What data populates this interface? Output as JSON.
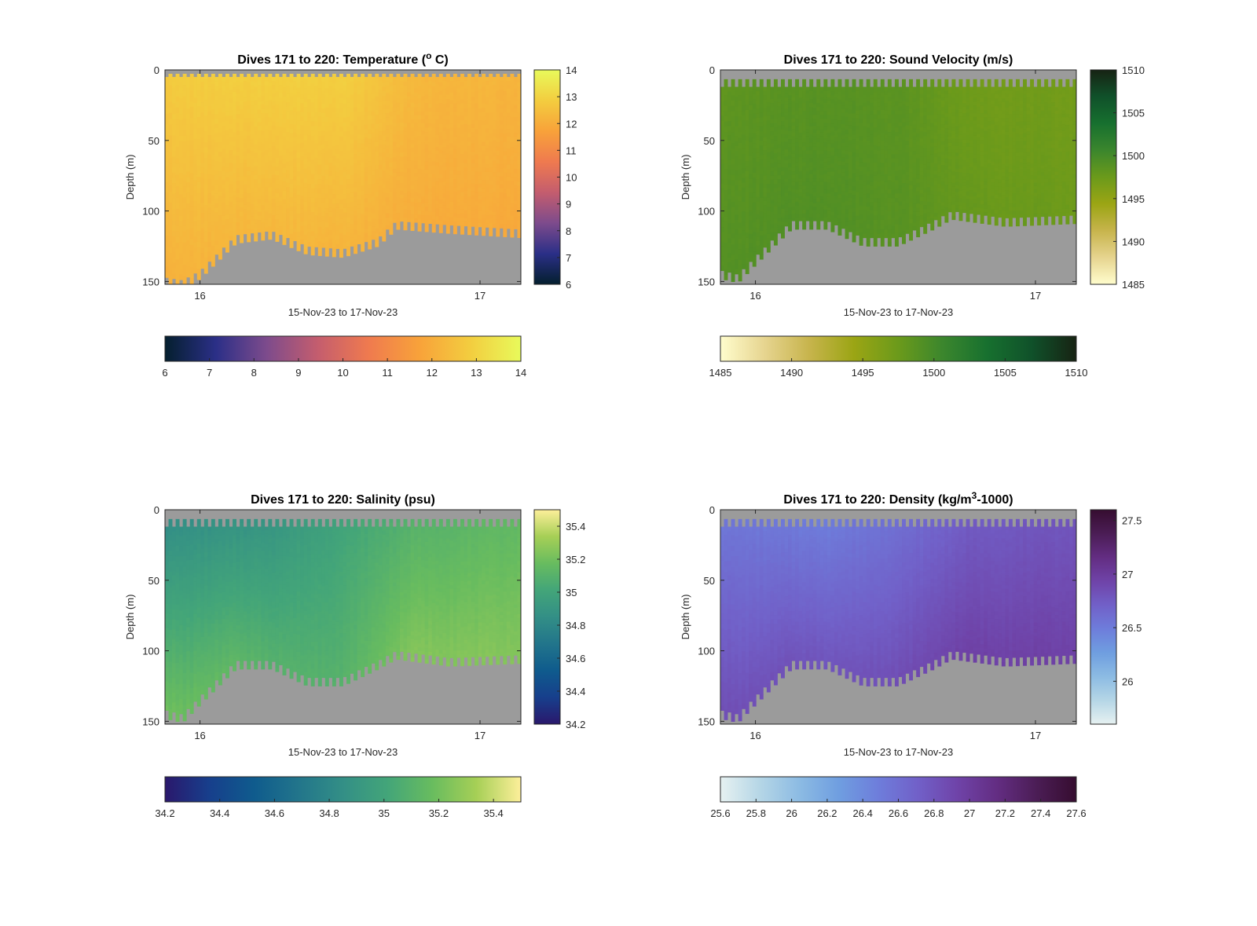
{
  "chart_data": [
    {
      "type": "heatmap",
      "title": "Dives 171 to 220: Temperature (",
      "title_sup": "o",
      "title_after": " C)",
      "xlabel": "15-Nov-23 to 17-Nov-23",
      "ylabel": "Depth (m)",
      "x_range": [
        "15-Nov-23 21:00",
        "17-Nov-23 03:30"
      ],
      "xticks": [
        {
          "label": "16",
          "value": "16-Nov-23 00:00"
        },
        {
          "label": "17",
          "value": "17-Nov-23 00:00"
        }
      ],
      "ylim": [
        0,
        152
      ],
      "yticks": [
        0,
        50,
        100,
        150
      ],
      "grid": false,
      "colormap": "thermal",
      "colormap_stops": [
        "#041f2e",
        "#2b2f87",
        "#7d4b8c",
        "#c45d6e",
        "#ef7a4f",
        "#f8a23a",
        "#f3cd3f",
        "#e8fa5b"
      ],
      "clim": [
        6,
        14
      ],
      "colorbar_ticks": [
        6,
        7,
        8,
        9,
        10,
        11,
        12,
        13,
        14
      ],
      "horizontal_colorbar_ticks": [
        6,
        7,
        8,
        9,
        10,
        11,
        12,
        13,
        14
      ],
      "no_data_color": "#9b9b9b",
      "surface_gap_m": 5,
      "value_profile": [
        {
          "x": 0.0,
          "surface": 12.8,
          "bottom": 12.1
        },
        {
          "x": 0.3,
          "surface": 12.9,
          "bottom": 12.3
        },
        {
          "x": 0.5,
          "surface": 12.9,
          "bottom": 12.2
        },
        {
          "x": 0.7,
          "surface": 12.3,
          "bottom": 12.0
        },
        {
          "x": 1.0,
          "surface": 12.2,
          "bottom": 11.9
        }
      ],
      "bottom_depth_profile": [
        {
          "x": 0.0,
          "depth": 150
        },
        {
          "x": 0.05,
          "depth": 152
        },
        {
          "x": 0.1,
          "depth": 145
        },
        {
          "x": 0.2,
          "depth": 120
        },
        {
          "x": 0.3,
          "depth": 117
        },
        {
          "x": 0.4,
          "depth": 128
        },
        {
          "x": 0.5,
          "depth": 130
        },
        {
          "x": 0.6,
          "depth": 122
        },
        {
          "x": 0.65,
          "depth": 110
        },
        {
          "x": 0.8,
          "depth": 113
        },
        {
          "x": 1.0,
          "depth": 116
        }
      ]
    },
    {
      "type": "heatmap",
      "title": "Dives 171 to 220: Sound Velocity (m/s)",
      "xlabel": "15-Nov-23 to 17-Nov-23",
      "ylabel": "Depth (m)",
      "x_range": [
        "15-Nov-23 21:00",
        "17-Nov-23 03:30"
      ],
      "xticks": [
        {
          "label": "16",
          "value": "16-Nov-23 00:00"
        },
        {
          "label": "17",
          "value": "17-Nov-23 00:00"
        }
      ],
      "ylim": [
        0,
        152
      ],
      "yticks": [
        0,
        50,
        100,
        150
      ],
      "grid": false,
      "colormap": "speed",
      "colormap_stops": [
        "#fffdcd",
        "#e6d48f",
        "#c7b44c",
        "#9ba514",
        "#6b9a1b",
        "#3b862d",
        "#17702f",
        "#10512a",
        "#172313"
      ],
      "clim": [
        1485,
        1510
      ],
      "colorbar_ticks": [
        1485,
        1490,
        1495,
        1500,
        1505,
        1510
      ],
      "horizontal_colorbar_ticks": [
        1485,
        1490,
        1495,
        1500,
        1505,
        1510
      ],
      "no_data_color": "#9b9b9b",
      "surface_gap_m": 12,
      "value_profile": [
        {
          "x": 0.0,
          "surface": 1498.3,
          "bottom": 1499.0
        },
        {
          "x": 0.3,
          "surface": 1498.8,
          "bottom": 1499.2
        },
        {
          "x": 0.5,
          "surface": 1498.6,
          "bottom": 1498.8
        },
        {
          "x": 0.7,
          "surface": 1497.2,
          "bottom": 1497.8
        },
        {
          "x": 1.0,
          "surface": 1497.0,
          "bottom": 1497.4
        }
      ],
      "bottom_depth_profile": [
        {
          "x": 0.0,
          "depth": 145
        },
        {
          "x": 0.05,
          "depth": 148
        },
        {
          "x": 0.1,
          "depth": 135
        },
        {
          "x": 0.2,
          "depth": 110
        },
        {
          "x": 0.3,
          "depth": 110
        },
        {
          "x": 0.4,
          "depth": 122
        },
        {
          "x": 0.5,
          "depth": 122
        },
        {
          "x": 0.6,
          "depth": 110
        },
        {
          "x": 0.65,
          "depth": 103
        },
        {
          "x": 0.8,
          "depth": 108
        },
        {
          "x": 1.0,
          "depth": 106
        }
      ]
    },
    {
      "type": "heatmap",
      "title": "Dives 171 to 220: Salinity (psu)",
      "xlabel": "15-Nov-23 to 17-Nov-23",
      "ylabel": "Depth (m)",
      "x_range": [
        "15-Nov-23 21:00",
        "17-Nov-23 03:30"
      ],
      "xticks": [
        {
          "label": "16",
          "value": "16-Nov-23 00:00"
        },
        {
          "label": "17",
          "value": "17-Nov-23 00:00"
        }
      ],
      "ylim": [
        0,
        152
      ],
      "yticks": [
        0,
        50,
        100,
        150
      ],
      "grid": false,
      "colormap": "haline",
      "colormap_stops": [
        "#2a186c",
        "#173f8c",
        "#0f5b8d",
        "#22758b",
        "#338f86",
        "#43a579",
        "#68bc5f",
        "#a6cf56",
        "#fdef9a"
      ],
      "clim": [
        34.2,
        35.5
      ],
      "colorbar_ticks": [
        34.2,
        34.4,
        34.6,
        34.8,
        35,
        35.2,
        35.4
      ],
      "horizontal_colorbar_ticks": [
        34.2,
        34.4,
        34.6,
        34.8,
        35,
        35.2,
        35.4
      ],
      "no_data_color": "#9b9b9b",
      "surface_gap_m": 12,
      "value_profile": [
        {
          "x": 0.0,
          "surface": 34.85,
          "bottom": 35.2
        },
        {
          "x": 0.3,
          "surface": 34.9,
          "bottom": 35.1
        },
        {
          "x": 0.5,
          "surface": 35.0,
          "bottom": 35.1
        },
        {
          "x": 0.7,
          "surface": 35.1,
          "bottom": 35.25
        },
        {
          "x": 1.0,
          "surface": 35.15,
          "bottom": 35.25
        }
      ],
      "bottom_depth_profile": [
        {
          "x": 0.0,
          "depth": 145
        },
        {
          "x": 0.05,
          "depth": 148
        },
        {
          "x": 0.1,
          "depth": 135
        },
        {
          "x": 0.2,
          "depth": 110
        },
        {
          "x": 0.3,
          "depth": 110
        },
        {
          "x": 0.4,
          "depth": 122
        },
        {
          "x": 0.5,
          "depth": 122
        },
        {
          "x": 0.6,
          "depth": 110
        },
        {
          "x": 0.65,
          "depth": 103
        },
        {
          "x": 0.8,
          "depth": 108
        },
        {
          "x": 1.0,
          "depth": 106
        }
      ]
    },
    {
      "type": "heatmap",
      "title": "Dives 171 to 220: Density (kg/m",
      "title_sup": "3",
      "title_after": "-1000)",
      "xlabel": "15-Nov-23 to 17-Nov-23",
      "ylabel": "Depth (m)",
      "x_range": [
        "15-Nov-23 21:00",
        "17-Nov-23 03:30"
      ],
      "xticks": [
        {
          "label": "16",
          "value": "16-Nov-23 00:00"
        },
        {
          "label": "17",
          "value": "17-Nov-23 00:00"
        }
      ],
      "ylim": [
        0,
        152
      ],
      "yticks": [
        0,
        50,
        100,
        150
      ],
      "grid": false,
      "colormap": "dense",
      "colormap_stops": [
        "#e6f1f1",
        "#b5d6e6",
        "#8cbbe3",
        "#6f9ee0",
        "#6e7ddb",
        "#7160c8",
        "#6f43a8",
        "#632d82",
        "#4b1d55",
        "#360d30"
      ],
      "clim": [
        25.6,
        27.6
      ],
      "colorbar_ticks": [
        26,
        26.5,
        27,
        27.5
      ],
      "horizontal_colorbar_ticks": [
        25.6,
        25.8,
        26,
        26.2,
        26.4,
        26.6,
        26.8,
        27,
        27.2,
        27.4,
        27.6
      ],
      "no_data_color": "#9b9b9b",
      "surface_gap_m": 12,
      "value_profile": [
        {
          "x": 0.0,
          "surface": 26.55,
          "bottom": 26.85
        },
        {
          "x": 0.3,
          "surface": 26.5,
          "bottom": 26.8
        },
        {
          "x": 0.5,
          "surface": 26.6,
          "bottom": 26.85
        },
        {
          "x": 0.7,
          "surface": 26.75,
          "bottom": 26.95
        },
        {
          "x": 1.0,
          "surface": 26.8,
          "bottom": 26.95
        }
      ],
      "bottom_depth_profile": [
        {
          "x": 0.0,
          "depth": 145
        },
        {
          "x": 0.05,
          "depth": 148
        },
        {
          "x": 0.1,
          "depth": 135
        },
        {
          "x": 0.2,
          "depth": 110
        },
        {
          "x": 0.3,
          "depth": 110
        },
        {
          "x": 0.4,
          "depth": 122
        },
        {
          "x": 0.5,
          "depth": 122
        },
        {
          "x": 0.6,
          "depth": 110
        },
        {
          "x": 0.65,
          "depth": 103
        },
        {
          "x": 0.8,
          "depth": 108
        },
        {
          "x": 1.0,
          "depth": 106
        }
      ]
    }
  ]
}
